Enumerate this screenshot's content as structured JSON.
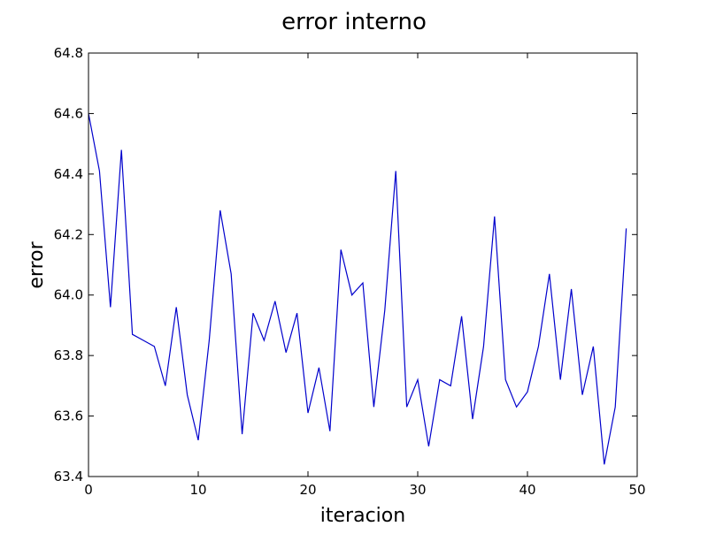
{
  "chart_data": {
    "type": "line",
    "title": "error interno",
    "xlabel": "iteracion",
    "ylabel": "error",
    "xlim": [
      0,
      50
    ],
    "ylim": [
      63.4,
      64.8
    ],
    "xticks": [
      0,
      10,
      20,
      30,
      40,
      50
    ],
    "yticks": [
      63.4,
      63.6,
      63.8,
      64.0,
      64.2,
      64.4,
      64.6,
      64.8
    ],
    "xtick_labels": [
      "0",
      "10",
      "20",
      "30",
      "40",
      "50"
    ],
    "ytick_labels": [
      "63.4",
      "63.6",
      "63.8",
      "64.0",
      "64.2",
      "64.4",
      "64.6",
      "64.8"
    ],
    "grid": false,
    "line_color": "#0000cc",
    "series": [
      {
        "x": [
          0,
          1,
          2,
          3,
          4,
          5,
          6,
          7,
          8,
          9,
          10,
          11,
          12,
          13,
          14,
          15,
          16,
          17,
          18,
          19,
          20,
          21,
          22,
          23,
          24,
          25,
          26,
          27,
          28,
          29,
          30,
          31,
          32,
          33,
          34,
          35,
          36,
          37,
          38,
          39,
          40,
          41,
          42,
          43,
          44,
          45,
          46,
          47,
          48,
          49
        ],
        "values": [
          64.6,
          64.41,
          63.96,
          64.48,
          63.87,
          63.85,
          63.83,
          63.7,
          63.96,
          63.67,
          63.52,
          63.85,
          64.28,
          64.07,
          63.54,
          63.94,
          63.85,
          63.98,
          63.81,
          63.94,
          63.61,
          63.76,
          63.55,
          64.15,
          64.0,
          64.04,
          63.63,
          63.95,
          64.41,
          63.63,
          63.72,
          63.5,
          63.72,
          63.7,
          63.93,
          63.59,
          63.83,
          64.26,
          63.72,
          63.63,
          63.68,
          63.83,
          64.07,
          63.72,
          64.02,
          63.67,
          63.83,
          63.44,
          63.63,
          64.22
        ]
      }
    ]
  }
}
